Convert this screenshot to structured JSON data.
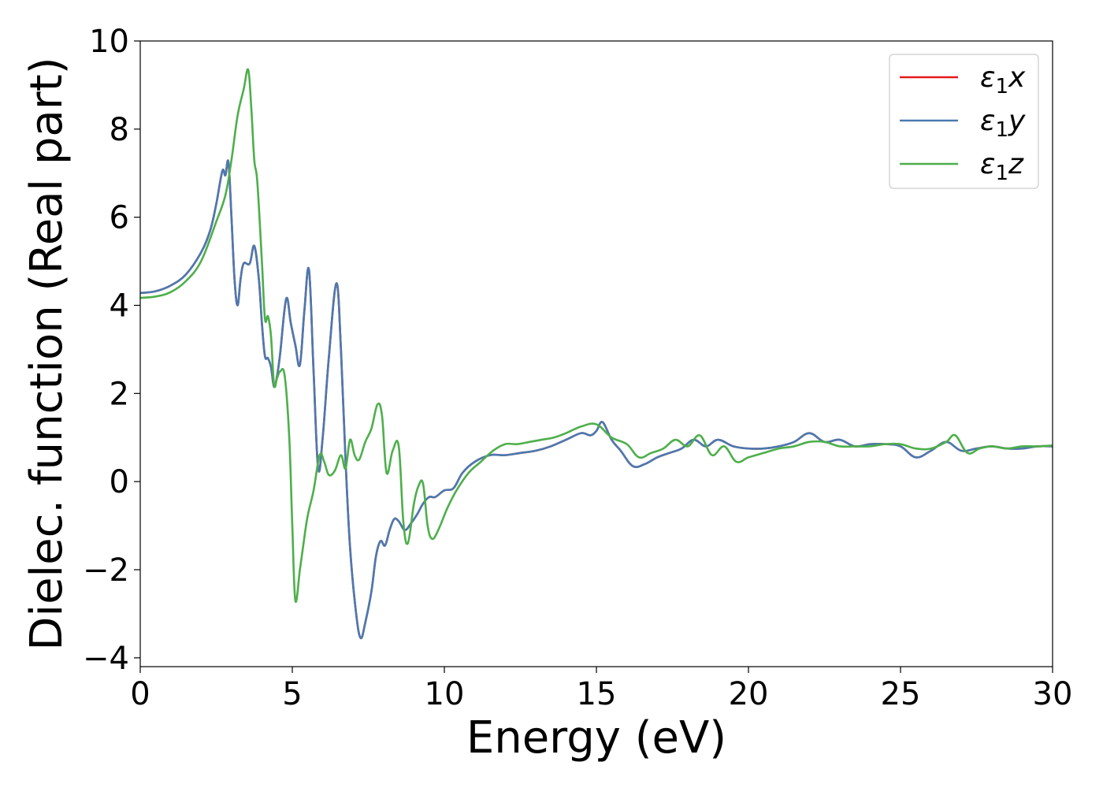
{
  "chart_data": {
    "type": "line",
    "xlabel": "Energy (eV)",
    "ylabel": "Dielec. function (Real part)",
    "xlim": [
      0,
      30
    ],
    "ylim": [
      -4.2,
      10
    ],
    "xticks": [
      0,
      5,
      10,
      15,
      20,
      25,
      30
    ],
    "yticks": [
      -4,
      -2,
      0,
      2,
      4,
      6,
      8,
      10
    ],
    "ytick_labels": [
      "−4",
      "−2",
      "0",
      "2",
      "4",
      "6",
      "8",
      "10"
    ],
    "grid": false,
    "legend_position": "top-right",
    "series": [
      {
        "name": "ε₁x",
        "label_main": "ε",
        "label_sub": "1",
        "label_var": "x",
        "color": "#e41a1c",
        "x": [
          0,
          0.5,
          1,
          1.5,
          2,
          2.3,
          2.5,
          2.7,
          2.8,
          2.9,
          3.0,
          3.1,
          3.2,
          3.3,
          3.4,
          3.6,
          3.75,
          3.9,
          4.0,
          4.1,
          4.2,
          4.3,
          4.4,
          4.5,
          4.6,
          4.8,
          4.95,
          5.1,
          5.25,
          5.4,
          5.55,
          5.7,
          5.85,
          6.0,
          6.2,
          6.45,
          6.6,
          6.75,
          6.9,
          7.1,
          7.25,
          7.4,
          7.6,
          7.75,
          7.9,
          8.05,
          8.2,
          8.35,
          8.5,
          8.7,
          8.9,
          9.1,
          9.3,
          9.5,
          9.7,
          10,
          10.3,
          10.6,
          11,
          11.5,
          12,
          12.5,
          13,
          13.5,
          14,
          14.5,
          14.8,
          15.0,
          15.2,
          15.5,
          15.8,
          16.2,
          16.6,
          17,
          17.4,
          17.8,
          18.2,
          18.6,
          19,
          19.5,
          20,
          20.5,
          21,
          21.5,
          22,
          22.5,
          23,
          23.5,
          24,
          24.5,
          25,
          25.5,
          26,
          26.5,
          27,
          27.5,
          28,
          28.5,
          29,
          29.5,
          30
        ],
        "y": [
          4.28,
          4.32,
          4.45,
          4.7,
          5.2,
          5.7,
          6.3,
          7.05,
          6.95,
          7.25,
          6.0,
          4.6,
          4.0,
          4.6,
          4.95,
          4.95,
          5.35,
          4.6,
          3.6,
          2.85,
          2.8,
          2.6,
          2.15,
          2.4,
          2.9,
          4.15,
          3.6,
          3.1,
          2.65,
          3.9,
          4.8,
          2.5,
          0.3,
          1.0,
          2.8,
          4.5,
          3.0,
          0.5,
          -1.5,
          -3.0,
          -3.55,
          -3.2,
          -2.5,
          -1.7,
          -1.35,
          -1.45,
          -1.1,
          -0.85,
          -0.9,
          -1.1,
          -0.95,
          -0.75,
          -0.5,
          -0.35,
          -0.35,
          -0.2,
          -0.15,
          0.2,
          0.45,
          0.6,
          0.6,
          0.65,
          0.7,
          0.8,
          0.95,
          1.1,
          1.05,
          1.15,
          1.35,
          0.95,
          0.7,
          0.35,
          0.4,
          0.55,
          0.65,
          0.75,
          0.95,
          0.8,
          0.95,
          0.8,
          0.75,
          0.75,
          0.8,
          0.9,
          1.1,
          0.9,
          0.95,
          0.8,
          0.85,
          0.85,
          0.8,
          0.55,
          0.7,
          0.9,
          0.7,
          0.75,
          0.8,
          0.75,
          0.75,
          0.8,
          0.8
        ]
      },
      {
        "name": "ε₁y",
        "label_main": "ε",
        "label_sub": "1",
        "label_var": "y",
        "color": "#4a7ab0",
        "x": [
          0,
          0.5,
          1,
          1.5,
          2,
          2.3,
          2.5,
          2.7,
          2.8,
          2.9,
          3.0,
          3.1,
          3.2,
          3.3,
          3.4,
          3.6,
          3.75,
          3.9,
          4.0,
          4.1,
          4.2,
          4.3,
          4.4,
          4.5,
          4.6,
          4.8,
          4.95,
          5.1,
          5.25,
          5.4,
          5.55,
          5.7,
          5.85,
          6.0,
          6.2,
          6.45,
          6.6,
          6.75,
          6.9,
          7.1,
          7.25,
          7.4,
          7.6,
          7.75,
          7.9,
          8.05,
          8.2,
          8.35,
          8.5,
          8.7,
          8.9,
          9.1,
          9.3,
          9.5,
          9.7,
          10,
          10.3,
          10.6,
          11,
          11.5,
          12,
          12.5,
          13,
          13.5,
          14,
          14.5,
          14.8,
          15.0,
          15.2,
          15.5,
          15.8,
          16.2,
          16.6,
          17,
          17.4,
          17.8,
          18.2,
          18.6,
          19,
          19.5,
          20,
          20.5,
          21,
          21.5,
          22,
          22.5,
          23,
          23.5,
          24,
          24.5,
          25,
          25.5,
          26,
          26.5,
          27,
          27.5,
          28,
          28.5,
          29,
          29.5,
          30
        ],
        "y": [
          4.28,
          4.32,
          4.45,
          4.7,
          5.2,
          5.7,
          6.3,
          7.05,
          6.95,
          7.25,
          6.0,
          4.6,
          4.0,
          4.6,
          4.95,
          4.95,
          5.35,
          4.6,
          3.6,
          2.85,
          2.8,
          2.6,
          2.15,
          2.4,
          2.9,
          4.15,
          3.6,
          3.1,
          2.65,
          3.9,
          4.8,
          2.5,
          0.3,
          1.0,
          2.8,
          4.5,
          3.0,
          0.5,
          -1.5,
          -3.0,
          -3.55,
          -3.2,
          -2.5,
          -1.7,
          -1.35,
          -1.45,
          -1.1,
          -0.85,
          -0.9,
          -1.1,
          -0.95,
          -0.75,
          -0.5,
          -0.35,
          -0.35,
          -0.2,
          -0.15,
          0.2,
          0.45,
          0.6,
          0.6,
          0.65,
          0.7,
          0.8,
          0.95,
          1.1,
          1.05,
          1.15,
          1.35,
          0.95,
          0.7,
          0.35,
          0.4,
          0.55,
          0.65,
          0.75,
          0.95,
          0.8,
          0.95,
          0.8,
          0.75,
          0.75,
          0.8,
          0.9,
          1.1,
          0.9,
          0.95,
          0.8,
          0.85,
          0.85,
          0.8,
          0.55,
          0.7,
          0.9,
          0.7,
          0.75,
          0.8,
          0.75,
          0.75,
          0.8,
          0.8
        ]
      },
      {
        "name": "ε₁z",
        "label_main": "ε",
        "label_sub": "1",
        "label_var": "z",
        "color": "#4daf4a",
        "x": [
          0,
          0.5,
          1,
          1.5,
          2,
          2.5,
          2.8,
          3.0,
          3.2,
          3.4,
          3.55,
          3.65,
          3.75,
          3.85,
          4.0,
          4.1,
          4.2,
          4.3,
          4.4,
          4.5,
          4.6,
          4.75,
          4.9,
          5.0,
          5.1,
          5.25,
          5.35,
          5.5,
          5.7,
          5.9,
          6.05,
          6.2,
          6.4,
          6.6,
          6.75,
          6.9,
          7.05,
          7.2,
          7.4,
          7.6,
          7.8,
          7.95,
          8.1,
          8.3,
          8.5,
          8.65,
          8.8,
          9.0,
          9.15,
          9.3,
          9.45,
          9.6,
          9.8,
          10.1,
          10.4,
          10.8,
          11.2,
          11.6,
          12,
          12.4,
          12.8,
          13.2,
          13.6,
          14,
          14.5,
          15,
          15.5,
          16,
          16.4,
          16.8,
          17.2,
          17.6,
          18,
          18.4,
          18.8,
          19.2,
          19.6,
          20,
          20.5,
          21,
          21.5,
          22,
          22.5,
          23,
          23.5,
          24,
          24.5,
          25,
          25.5,
          26,
          26.5,
          26.8,
          27.2,
          27.6,
          28,
          28.5,
          29,
          29.5,
          30
        ],
        "y": [
          4.17,
          4.2,
          4.3,
          4.55,
          5.0,
          5.9,
          6.5,
          7.3,
          8.3,
          8.9,
          9.35,
          8.5,
          7.3,
          6.8,
          5.0,
          3.7,
          3.75,
          3.3,
          2.2,
          2.35,
          2.5,
          2.4,
          1.0,
          -1.0,
          -2.7,
          -2.0,
          -1.5,
          -0.8,
          -0.2,
          0.6,
          0.45,
          0.15,
          0.25,
          0.6,
          0.3,
          0.95,
          0.6,
          0.5,
          0.9,
          1.2,
          1.75,
          1.5,
          0.2,
          0.7,
          0.8,
          -0.9,
          -1.4,
          -0.5,
          -0.1,
          -0.05,
          -1.0,
          -1.3,
          -1.1,
          -0.6,
          -0.2,
          0.2,
          0.45,
          0.7,
          0.85,
          0.85,
          0.9,
          0.95,
          1.0,
          1.1,
          1.25,
          1.3,
          1.0,
          0.85,
          0.55,
          0.65,
          0.75,
          0.95,
          0.8,
          1.05,
          0.6,
          0.8,
          0.45,
          0.55,
          0.65,
          0.75,
          0.8,
          0.9,
          0.9,
          0.8,
          0.8,
          0.8,
          0.85,
          0.85,
          0.75,
          0.75,
          0.9,
          1.05,
          0.65,
          0.75,
          0.8,
          0.75,
          0.8,
          0.8,
          0.82
        ]
      }
    ]
  }
}
